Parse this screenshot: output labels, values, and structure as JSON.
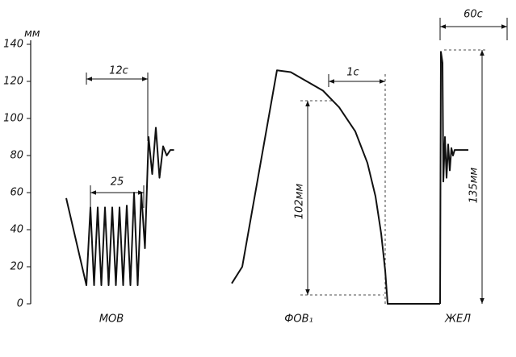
{
  "chart_data": {
    "type": "line",
    "ylabel": "мм",
    "ylim": [
      0,
      140
    ],
    "yticks": [
      0,
      20,
      40,
      60,
      80,
      100,
      120,
      140
    ],
    "series": [
      {
        "name": "МОВ",
        "color": "#111111",
        "values": [
          57,
          10,
          52,
          10,
          52,
          10,
          52,
          10,
          52,
          10,
          52,
          10,
          53,
          10,
          60,
          10,
          60,
          30,
          90,
          70,
          95,
          68,
          85,
          80,
          83,
          83
        ]
      },
      {
        "name": "ФОВ₁",
        "color": "#111111",
        "values": [
          11,
          20,
          126,
          125,
          120,
          115,
          106,
          93,
          76,
          58,
          38,
          18,
          0,
          0
        ]
      },
      {
        "name": "ЖЕЛ",
        "color": "#111111",
        "values": [
          0,
          136,
          130,
          66,
          90,
          68,
          86,
          72,
          84,
          80,
          83,
          83
        ]
      }
    ],
    "annotations": [
      "12с",
      "25",
      "1с",
      "102мм",
      "60с",
      "135мм"
    ]
  }
}
